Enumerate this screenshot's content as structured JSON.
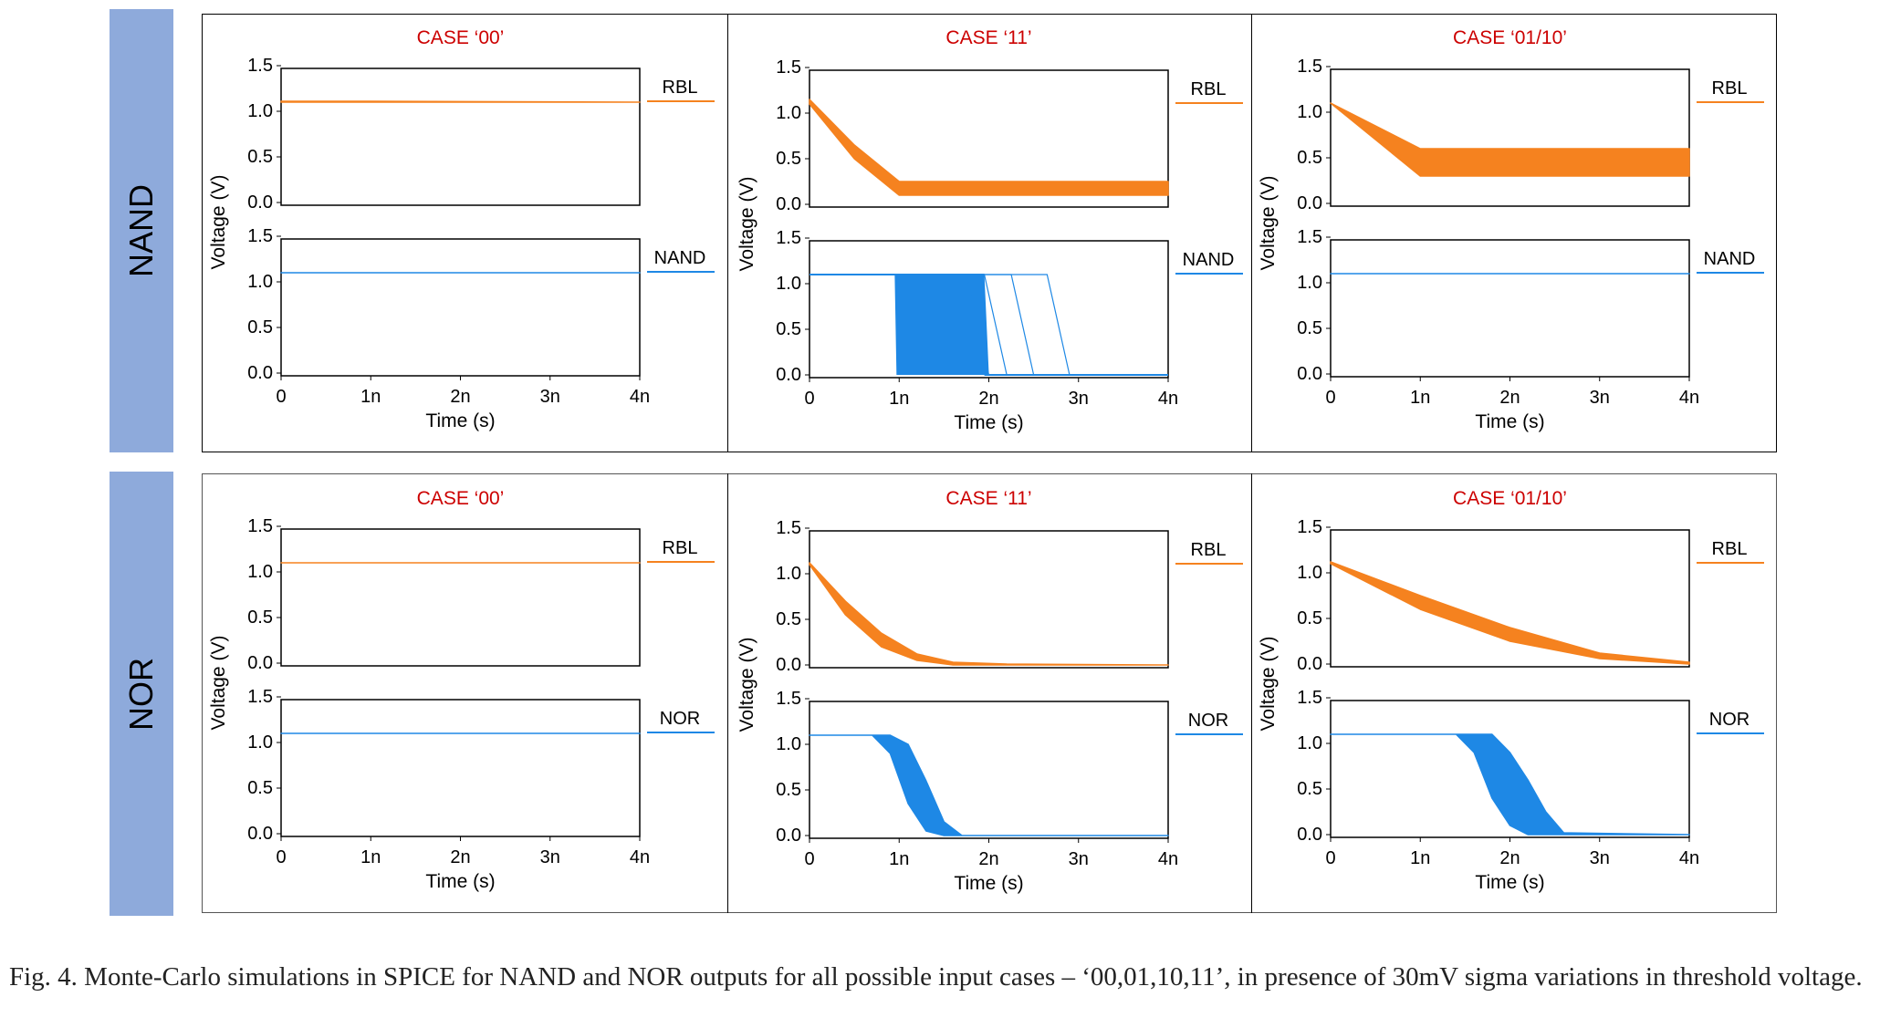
{
  "row_labels": {
    "nand": "NAND",
    "nor": "NOR"
  },
  "caption": "Fig. 4.   Monte-Carlo simulations in SPICE for NAND and NOR outputs for all possible input cases – ‘00,01,10,11’, in presence of 30mV sigma variations in threshold voltage.",
  "colors": {
    "row_label_bg": "#8eaadb",
    "case_title": "#cc0000",
    "rbl_trace": "#f5821f",
    "output_trace": "#1e88e5",
    "frame": "#000000"
  },
  "chart_data": [
    {
      "type": "line",
      "row": "NAND",
      "case_title": "CASE ‘00’",
      "xlabel": "Time (s)",
      "ylabel": "Voltage (V)",
      "xticks": [
        "0",
        "1n",
        "2n",
        "3n",
        "4n"
      ],
      "xlim": [
        0,
        4
      ],
      "ylim": [
        0,
        1.5
      ],
      "yticks": [
        "0.0",
        "0.5",
        "1.0",
        "1.5"
      ],
      "series": [
        {
          "name": "RBL",
          "panel": "top",
          "x": [
            0,
            1,
            4
          ],
          "y_min": [
            1.1,
            1.1,
            1.1
          ],
          "y_max": [
            1.11,
            1.11,
            1.1
          ]
        },
        {
          "name": "NAND",
          "panel": "bottom",
          "x": [
            0,
            4
          ],
          "y_min": [
            1.1,
            1.1
          ],
          "y_max": [
            1.1,
            1.1
          ]
        }
      ]
    },
    {
      "type": "line",
      "row": "NAND",
      "case_title": "CASE ‘11’",
      "xlabel": "Time (s)",
      "ylabel": "Voltage (V)",
      "xticks": [
        "0",
        "1n",
        "2n",
        "3n",
        "4n"
      ],
      "xlim": [
        0,
        4
      ],
      "ylim": [
        0,
        1.5
      ],
      "yticks": [
        "0.0",
        "0.5",
        "1.0",
        "1.5"
      ],
      "series": [
        {
          "name": "RBL",
          "panel": "top",
          "x": [
            0,
            0.5,
            1,
            4
          ],
          "y_min": [
            1.1,
            0.5,
            0.1,
            0.1
          ],
          "y_max": [
            1.15,
            0.65,
            0.25,
            0.25
          ]
        },
        {
          "name": "NAND",
          "panel": "bottom",
          "fall_start_min": 0.95,
          "fall_start_max": 1.05,
          "fall_end_min": 1.0,
          "fall_end_max": 1.95,
          "outliers": [
            2.0,
            2.2,
            2.5,
            2.9
          ],
          "y_high": 1.1,
          "y_low": 0.0
        }
      ]
    },
    {
      "type": "line",
      "row": "NAND",
      "case_title": "CASE ‘01/10’",
      "xlabel": "Time (s)",
      "ylabel": "Voltage (V)",
      "xticks": [
        "0",
        "1n",
        "2n",
        "3n",
        "4n"
      ],
      "xlim": [
        0,
        4
      ],
      "ylim": [
        0,
        1.5
      ],
      "yticks": [
        "0.0",
        "0.5",
        "1.0",
        "1.5"
      ],
      "series": [
        {
          "name": "RBL",
          "panel": "top",
          "x": [
            0,
            1,
            4
          ],
          "y_min": [
            1.1,
            0.3,
            0.3
          ],
          "y_max": [
            1.1,
            0.6,
            0.6
          ]
        },
        {
          "name": "NAND",
          "panel": "bottom",
          "x": [
            0,
            4
          ],
          "y_min": [
            1.1,
            1.1
          ],
          "y_max": [
            1.1,
            1.1
          ]
        }
      ]
    },
    {
      "type": "line",
      "row": "NOR",
      "case_title": "CASE ‘00’",
      "xlabel": "Time (s)",
      "ylabel": "Voltage (V)",
      "xticks": [
        "0",
        "1n",
        "2n",
        "3n",
        "4n"
      ],
      "xlim": [
        0,
        4
      ],
      "ylim": [
        0,
        1.5
      ],
      "yticks": [
        "0.0",
        "0.5",
        "1.0",
        "1.5"
      ],
      "series": [
        {
          "name": "RBL",
          "panel": "top",
          "x": [
            0,
            4
          ],
          "y_min": [
            1.1,
            1.1
          ],
          "y_max": [
            1.1,
            1.1
          ]
        },
        {
          "name": "NOR",
          "panel": "bottom",
          "x": [
            0,
            4
          ],
          "y_min": [
            1.1,
            1.1
          ],
          "y_max": [
            1.1,
            1.1
          ]
        }
      ]
    },
    {
      "type": "line",
      "row": "NOR",
      "case_title": "CASE ‘11’",
      "xlabel": "Time (s)",
      "ylabel": "Voltage (V)",
      "xticks": [
        "0",
        "1n",
        "2n",
        "3n",
        "4n"
      ],
      "xlim": [
        0,
        4
      ],
      "ylim": [
        0,
        1.5
      ],
      "yticks": [
        "0.0",
        "0.5",
        "1.0",
        "1.5"
      ],
      "series": [
        {
          "name": "RBL",
          "panel": "top",
          "x": [
            0,
            0.4,
            0.8,
            1.2,
            1.6,
            2.2,
            4
          ],
          "y_min": [
            1.1,
            0.55,
            0.2,
            0.05,
            0.0,
            0.0,
            0.0
          ],
          "y_max": [
            1.12,
            0.7,
            0.35,
            0.12,
            0.03,
            0.01,
            0.0
          ]
        },
        {
          "name": "NOR",
          "panel": "bottom",
          "x": [
            0,
            0.7,
            0.9,
            1.1,
            1.3,
            1.5,
            1.7,
            4
          ],
          "y_min": [
            1.1,
            1.1,
            0.9,
            0.35,
            0.05,
            0.0,
            0.0,
            0.0
          ],
          "y_max": [
            1.1,
            1.1,
            1.1,
            1.0,
            0.6,
            0.15,
            0.0,
            0.0
          ]
        }
      ]
    },
    {
      "type": "line",
      "row": "NOR",
      "case_title": "CASE ‘01/10’",
      "xlabel": "Time (s)",
      "ylabel": "Voltage (V)",
      "xticks": [
        "0",
        "1n",
        "2n",
        "3n",
        "4n"
      ],
      "xlim": [
        0,
        4
      ],
      "ylim": [
        0,
        1.5
      ],
      "yticks": [
        "0.0",
        "0.5",
        "1.0",
        "1.5"
      ],
      "series": [
        {
          "name": "RBL",
          "panel": "top",
          "x": [
            0,
            1,
            2,
            3,
            4
          ],
          "y_min": [
            1.1,
            0.6,
            0.25,
            0.06,
            0.0
          ],
          "y_max": [
            1.12,
            0.75,
            0.4,
            0.12,
            0.02
          ]
        },
        {
          "name": "NOR",
          "panel": "bottom",
          "x": [
            0,
            1.4,
            1.6,
            1.8,
            2.0,
            2.2,
            2.4,
            2.6,
            4
          ],
          "y_min": [
            1.1,
            1.1,
            0.9,
            0.4,
            0.1,
            0.0,
            0.0,
            0.0,
            0.0
          ],
          "y_max": [
            1.1,
            1.1,
            1.1,
            1.1,
            0.9,
            0.6,
            0.25,
            0.02,
            0.0
          ]
        }
      ]
    }
  ]
}
